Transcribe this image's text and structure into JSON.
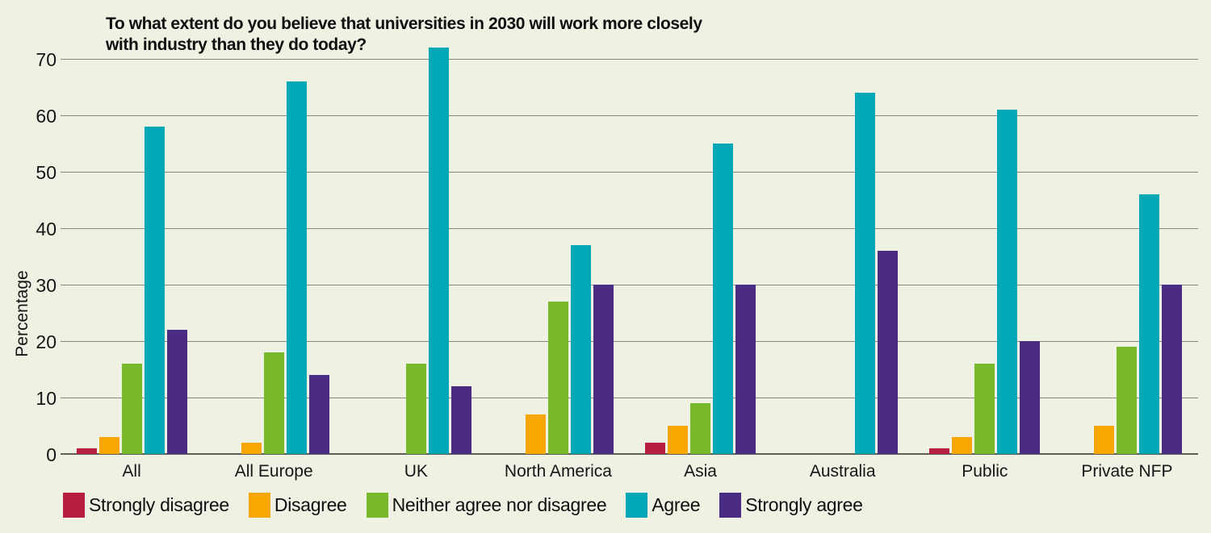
{
  "title": {
    "line1": "To what extent do you believe that universities in 2030 will work more closely",
    "line2": "with industry than they do today?"
  },
  "colors": {
    "background": "#eff1e3",
    "gridline": "#87887e",
    "baseline": "#5d5e55",
    "text": "#161616"
  },
  "chart_data": {
    "type": "bar",
    "title": "To what extent do you believe that universities in 2030 will work more closely with industry than they do today?",
    "categories": [
      "All",
      "All Europe",
      "UK",
      "North America",
      "Asia",
      "Australia",
      "Public",
      "Private NFP"
    ],
    "series": [
      {
        "name": "Strongly disagree",
        "color": "#b71e3f",
        "values": [
          1,
          0,
          0,
          0,
          2,
          0,
          1,
          0
        ]
      },
      {
        "name": "Disagree",
        "color": "#f8a602",
        "values": [
          3,
          2,
          0,
          7,
          5,
          0,
          3,
          5
        ]
      },
      {
        "name": "Neither agree nor disagree",
        "color": "#78b82b",
        "values": [
          16,
          18,
          16,
          27,
          9,
          0,
          16,
          19
        ]
      },
      {
        "name": "Agree",
        "color": "#00a7b5",
        "values": [
          58,
          66,
          72,
          37,
          55,
          64,
          61,
          46
        ]
      },
      {
        "name": "Strongly agree",
        "color": "#4b2c85",
        "values": [
          22,
          14,
          12,
          30,
          30,
          36,
          20,
          30
        ]
      }
    ],
    "xlabel": "",
    "ylabel": "Percentage",
    "ylim": [
      0,
      70
    ],
    "yticks": [
      0,
      10,
      20,
      30,
      40,
      50,
      60,
      70
    ],
    "grid": true,
    "legend_position": "bottom"
  }
}
